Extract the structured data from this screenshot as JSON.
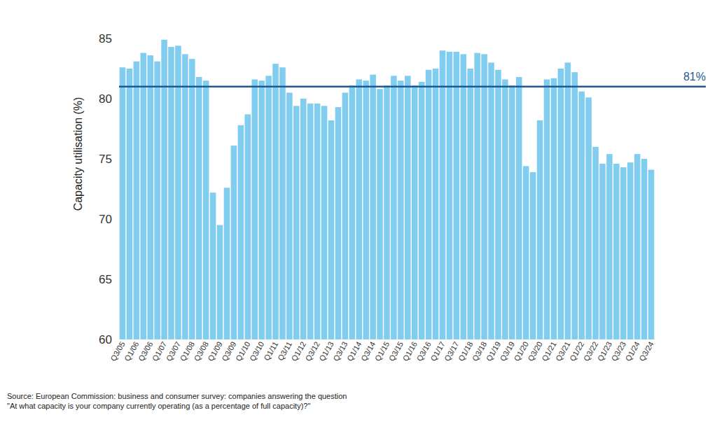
{
  "chart_data": {
    "type": "bar",
    "y_label": "Capacity utilisation (%)",
    "categories": [
      "Q3/05",
      null,
      "Q1/06",
      null,
      "Q3/06",
      null,
      "Q1/07",
      null,
      "Q3/07",
      null,
      "Q1/08",
      null,
      "Q3/08",
      null,
      "Q1/09",
      null,
      "Q3/09",
      null,
      "Q1/10",
      null,
      "Q3/10",
      null,
      "Q1/11",
      null,
      "Q3/11",
      null,
      "Q1/12",
      null,
      "Q3/12",
      null,
      "Q1/13",
      null,
      "Q3/13",
      null,
      "Q1/14",
      null,
      "Q3/14",
      null,
      "Q1/15",
      null,
      "Q3/15",
      null,
      "Q1/16",
      null,
      "Q3/16",
      null,
      "Q1/17",
      null,
      "Q3/17",
      null,
      "Q1/18",
      null,
      "Q3/18",
      null,
      "Q1/19",
      null,
      "Q3/19",
      null,
      "Q1/20",
      null,
      "Q3/20",
      null,
      "Q1/21",
      null,
      "Q3/21",
      null,
      "Q1/22",
      null,
      "Q3/22",
      null,
      "Q1/23",
      null,
      "Q3/23",
      null,
      "Q1/24",
      null,
      "Q3/24"
    ],
    "values": [
      82.6,
      82.5,
      83.1,
      83.8,
      83.6,
      83.1,
      84.9,
      84.3,
      84.4,
      83.7,
      83.3,
      81.8,
      81.5,
      72.2,
      69.5,
      72.6,
      76.1,
      77.8,
      78.7,
      81.6,
      81.5,
      81.9,
      82.9,
      82.6,
      80.5,
      79.4,
      80.0,
      79.6,
      79.6,
      79.4,
      78.2,
      79.3,
      80.5,
      81.1,
      81.6,
      81.5,
      82.0,
      80.8,
      81.1,
      81.9,
      81.5,
      81.9,
      81.1,
      81.4,
      82.4,
      82.5,
      84.0,
      83.9,
      83.9,
      83.7,
      82.5,
      83.8,
      83.7,
      83.0,
      82.4,
      81.6,
      81.1,
      81.8,
      74.4,
      73.9,
      78.2,
      81.6,
      81.7,
      82.5,
      83.0,
      82.2,
      80.6,
      80.1,
      76.0,
      74.6,
      75.4,
      74.6,
      74.3,
      74.7,
      75.4,
      75.0,
      74.1
    ],
    "color": "#80cdf0",
    "ylim": [
      60,
      85
    ],
    "yticks": [
      60,
      65,
      70,
      75,
      80,
      85
    ],
    "grid": false,
    "annotations": [
      {
        "value": 81,
        "label": "81%",
        "color": "#1f5a96"
      }
    ],
    "notes": [
      "Source: European Commission: business and consumer survey: companies answering the question",
      "\"At what capacity is your company currently operating (as a percentage of full capacity)?\""
    ]
  }
}
